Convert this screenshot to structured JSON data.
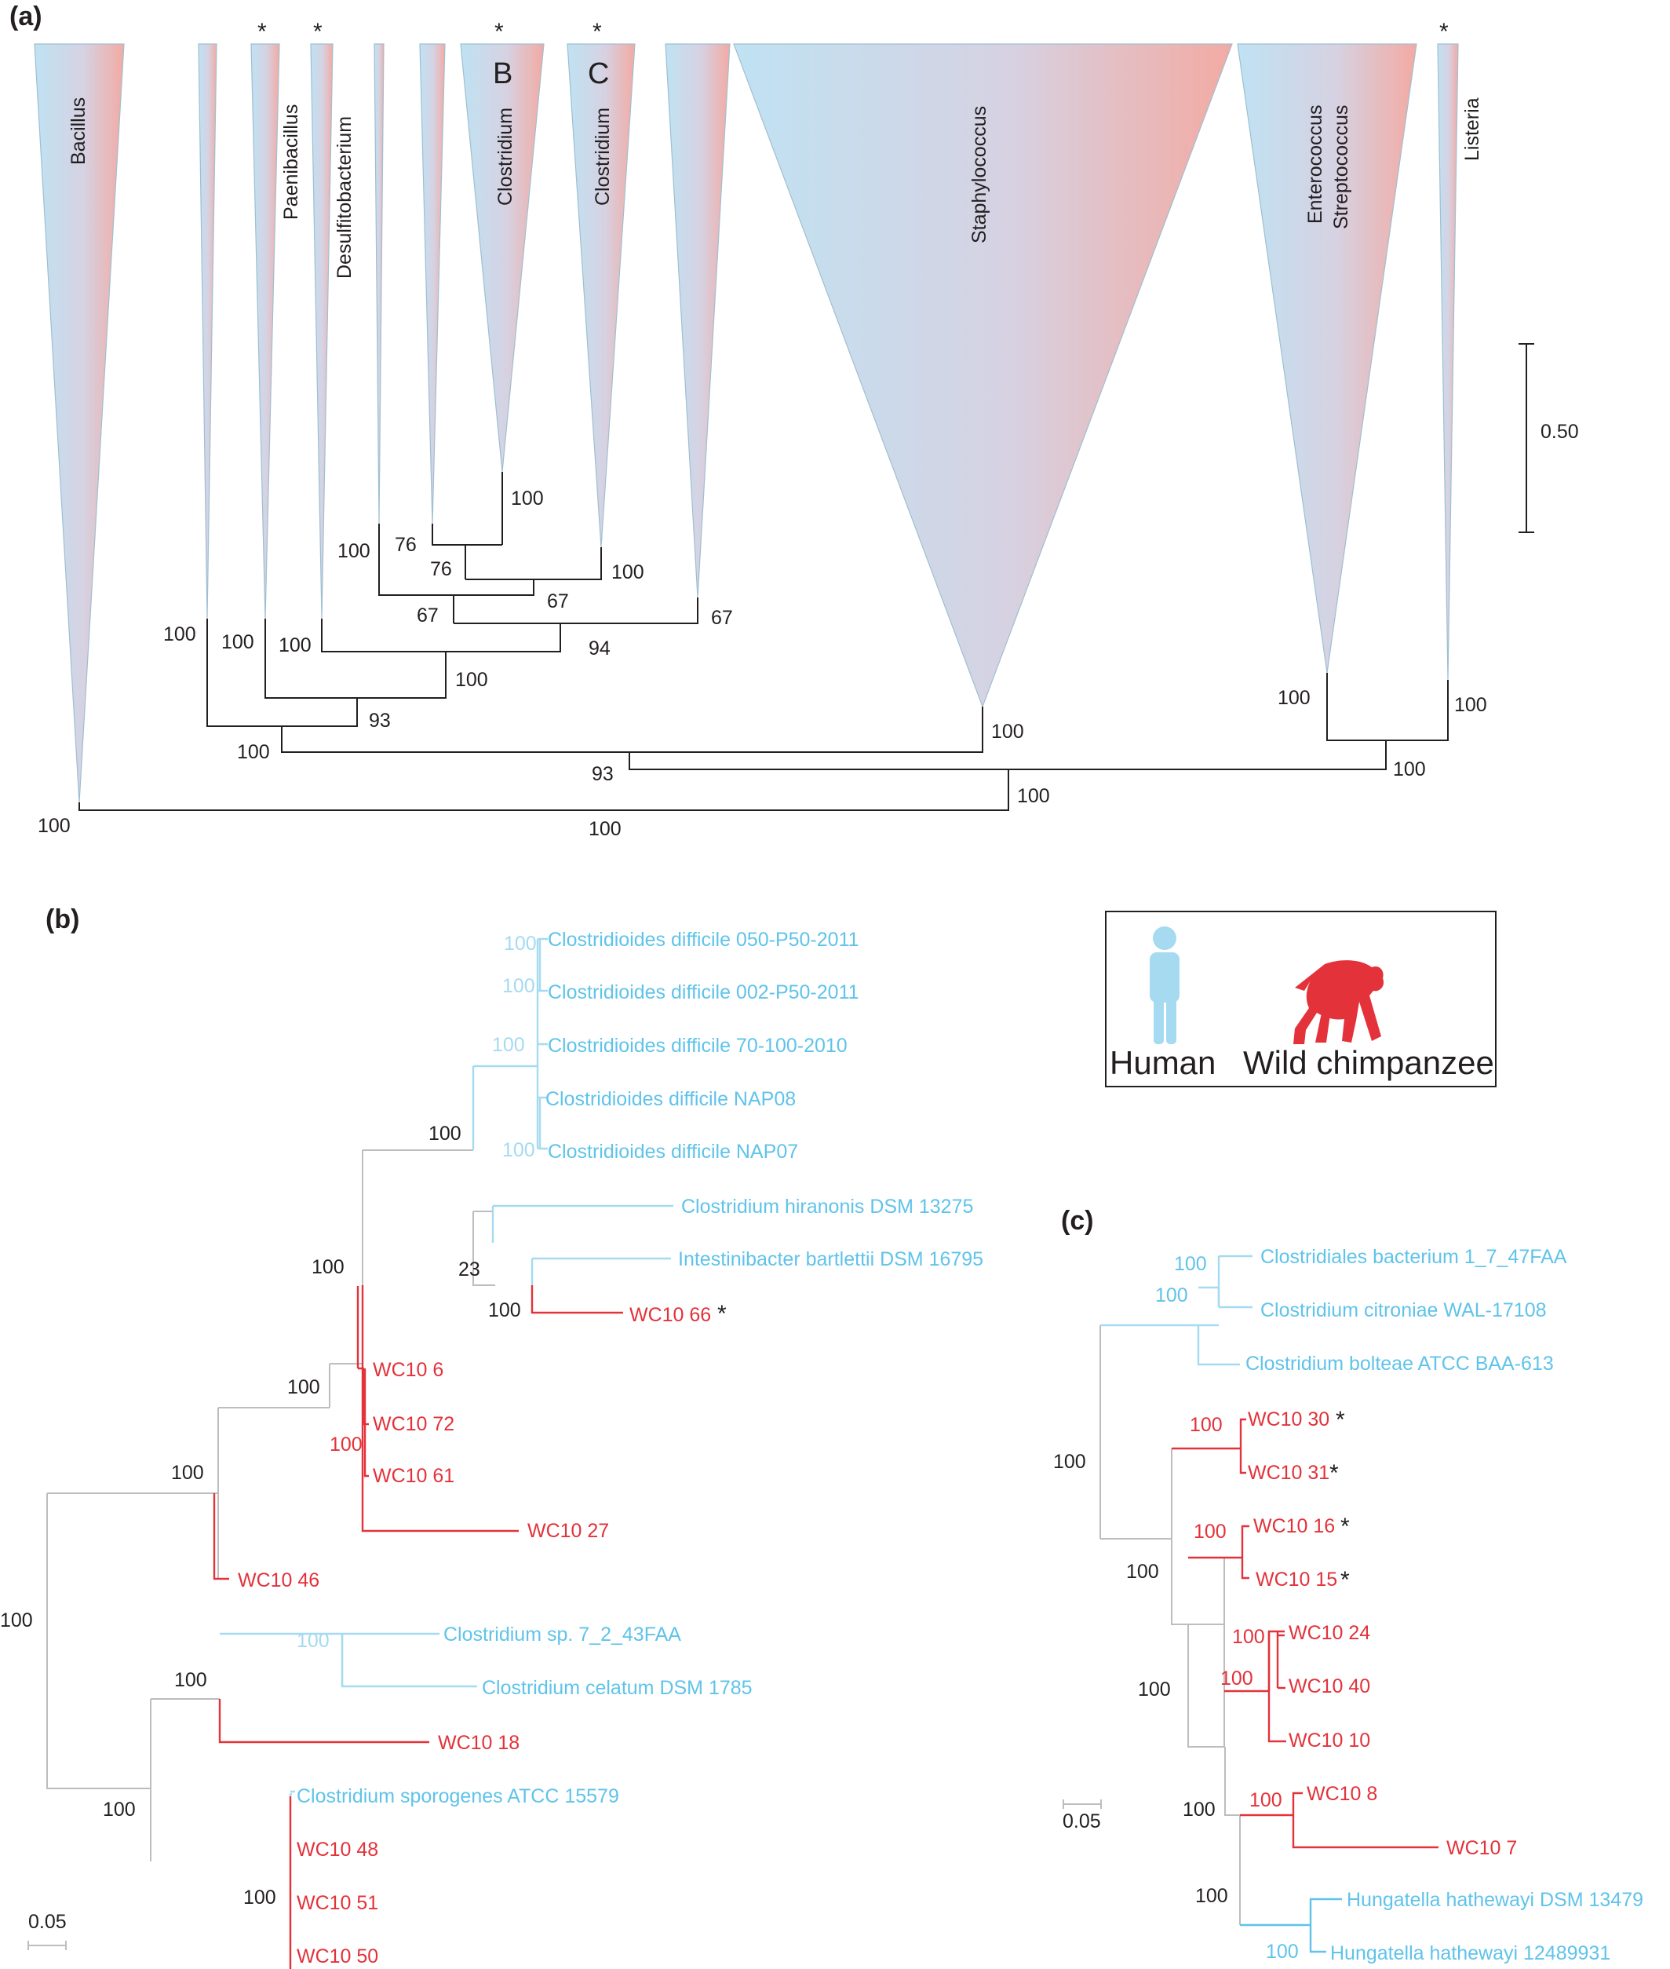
{
  "colors": {
    "human": "#5fc3ea",
    "human_light": "#a5daf1",
    "chimp": "#e3323a",
    "line": "#231f20",
    "grey_line": "#bdbdbd",
    "triangle_blue": "#bfe2f3",
    "triangle_red": "#f3b1aa"
  },
  "panel_a": {
    "label": "(a)",
    "clades": [
      {
        "name": "Bacillus",
        "star": ""
      },
      {
        "name": "",
        "star": ""
      },
      {
        "name": "Paenibacillus",
        "star": "*"
      },
      {
        "name": "Desulfitobacterium",
        "star": "*"
      },
      {
        "name": "",
        "star": ""
      },
      {
        "name": "",
        "star": ""
      },
      {
        "name": "Clostridium",
        "letter": "B",
        "star": "*"
      },
      {
        "name": "Clostridium",
        "letter": "C",
        "star": "*"
      },
      {
        "name": "",
        "star": ""
      },
      {
        "name": "Staphylococcus",
        "star": ""
      },
      {
        "name": "Enterococcus",
        "name2": "Streptococcus",
        "star": ""
      },
      {
        "name": "Listeria",
        "star": "*"
      }
    ],
    "bootstrap": [
      "100",
      "76",
      "76",
      "100",
      "100",
      "67",
      "67",
      "67",
      "100",
      "100",
      "100",
      "94",
      "100",
      "93",
      "100",
      "100",
      "100",
      "100",
      "93",
      "100",
      "100",
      "100",
      "100"
    ],
    "scale": {
      "label": "0.50"
    }
  },
  "legend": {
    "human": "Human",
    "chimp": "Wild chimpanzee"
  },
  "panel_b": {
    "label": "(b)",
    "scale": "0.05",
    "tips": [
      {
        "label": "Clostridioides difficile 050-P50-2011",
        "group": "human"
      },
      {
        "label": "Clostridioides difficile 002-P50-2011",
        "group": "human"
      },
      {
        "label": "Clostridioides difficile 70-100-2010",
        "group": "human"
      },
      {
        "label": "Clostridioides difficile NAP08",
        "group": "human"
      },
      {
        "label": "Clostridioides difficile NAP07",
        "group": "human"
      },
      {
        "label": "Clostridium hiranonis DSM 13275",
        "group": "human"
      },
      {
        "label": "Intestinibacter bartlettii DSM 16795",
        "group": "human"
      },
      {
        "label": "WC10 66",
        "group": "chimp",
        "star": "*"
      },
      {
        "label": "WC10 6",
        "group": "chimp"
      },
      {
        "label": "WC10 72",
        "group": "chimp"
      },
      {
        "label": "WC10 61",
        "group": "chimp"
      },
      {
        "label": "WC10 27",
        "group": "chimp"
      },
      {
        "label": "WC10 46",
        "group": "chimp"
      },
      {
        "label": "Clostridium sp. 7_2_43FAA",
        "group": "human"
      },
      {
        "label": "Clostridium celatum DSM 1785",
        "group": "human"
      },
      {
        "label": "WC10 18",
        "group": "chimp"
      },
      {
        "label": "Clostridium sporogenes ATCC 15579",
        "group": "human"
      },
      {
        "label": "WC10 48",
        "group": "chimp"
      },
      {
        "label": "WC10 51",
        "group": "chimp"
      },
      {
        "label": "WC10 50",
        "group": "chimp"
      }
    ],
    "bootstrap": [
      "100",
      "100",
      "100",
      "100",
      "100",
      "100",
      "23",
      "100",
      "100",
      "100",
      "100",
      "100",
      "100",
      "100",
      "100",
      "100",
      "100"
    ]
  },
  "panel_c": {
    "label": "(c)",
    "scale": "0.05",
    "tips": [
      {
        "label": "Clostridiales bacterium 1_7_47FAA",
        "group": "human"
      },
      {
        "label": "Clostridium citroniae WAL-17108",
        "group": "human"
      },
      {
        "label": "Clostridium bolteae ATCC BAA-613",
        "group": "human"
      },
      {
        "label": "WC10 30",
        "group": "chimp",
        "star": "*"
      },
      {
        "label": "WC10 31",
        "group": "chimp",
        "star": "*"
      },
      {
        "label": "WC10 16",
        "group": "chimp",
        "star": "*"
      },
      {
        "label": "WC10 15",
        "group": "chimp",
        "star": "*"
      },
      {
        "label": "WC10 24",
        "group": "chimp"
      },
      {
        "label": "WC10 40",
        "group": "chimp"
      },
      {
        "label": "WC10 10",
        "group": "chimp"
      },
      {
        "label": "WC10 8",
        "group": "chimp"
      },
      {
        "label": "WC10 7",
        "group": "chimp"
      },
      {
        "label": "Hungatella hathewayi DSM 13479",
        "group": "human"
      },
      {
        "label": "Hungatella hathewayi 12489931",
        "group": "human"
      }
    ],
    "bootstrap": [
      "100",
      "100",
      "100",
      "100",
      "100",
      "100",
      "100",
      "100",
      "100",
      "100",
      "100",
      "100",
      "100",
      "100"
    ]
  }
}
